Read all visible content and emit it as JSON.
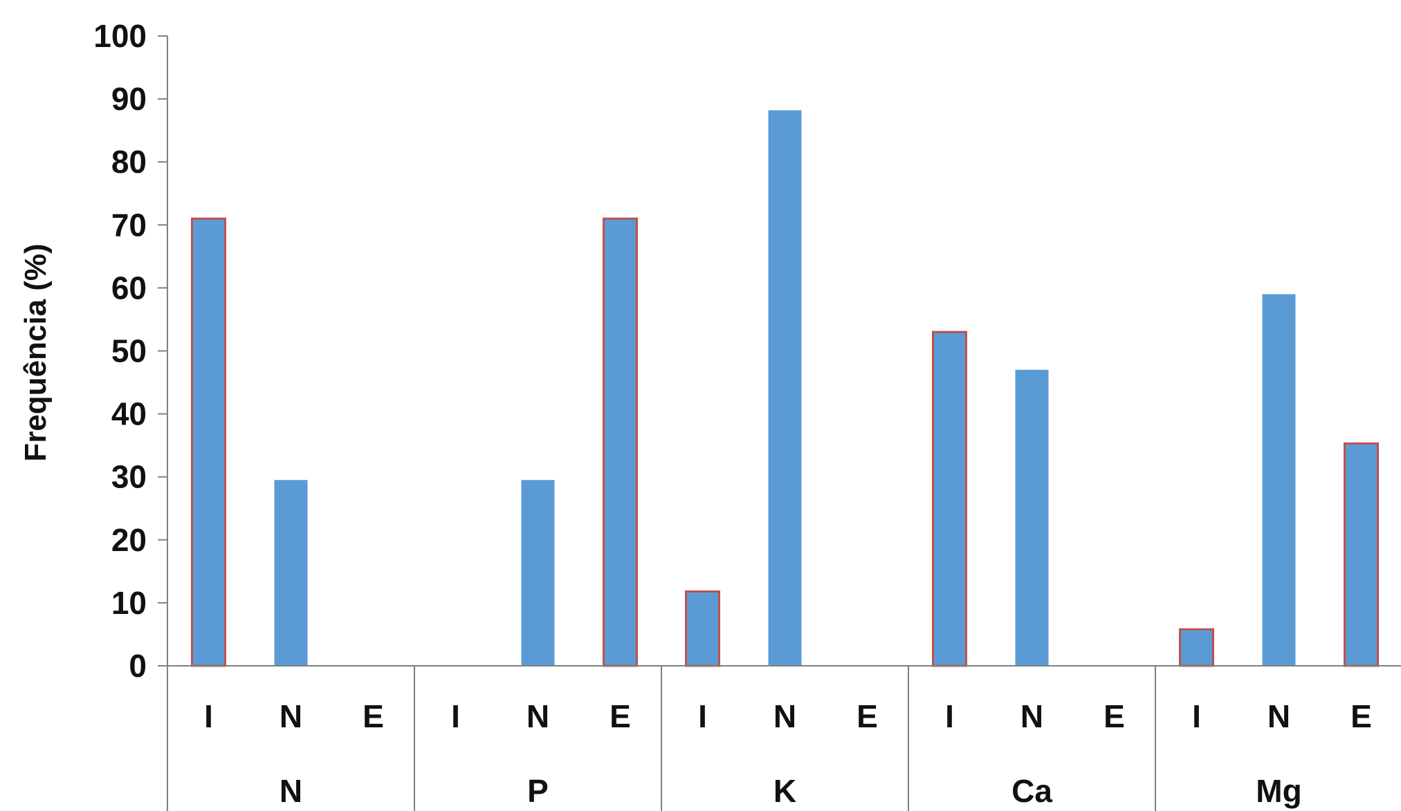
{
  "chart_data": {
    "type": "bar",
    "title": "",
    "xlabel": "",
    "ylabel": "Frequência (%)",
    "ylim": [
      0,
      100
    ],
    "yticks": [
      0,
      10,
      20,
      30,
      40,
      50,
      60,
      70,
      80,
      90,
      100
    ],
    "grid": false,
    "legend": "none",
    "groups": [
      {
        "label": "N",
        "subcategories": [
          "I",
          "N",
          "E"
        ],
        "values": [
          71,
          29.5,
          0
        ]
      },
      {
        "label": "P",
        "subcategories": [
          "I",
          "N",
          "E"
        ],
        "values": [
          0,
          29.5,
          71
        ]
      },
      {
        "label": "K",
        "subcategories": [
          "I",
          "N",
          "E"
        ],
        "values": [
          11.8,
          88.2,
          0
        ]
      },
      {
        "label": "Ca",
        "subcategories": [
          "I",
          "N",
          "E"
        ],
        "values": [
          53,
          47,
          0
        ]
      },
      {
        "label": "Mg",
        "subcategories": [
          "I",
          "N",
          "E"
        ],
        "values": [
          5.8,
          59,
          35.3
        ]
      }
    ],
    "colors": {
      "bar_fill": "#5B9BD5",
      "outline_highlight": "#C0504D",
      "axis": "#808080",
      "text": "#111111"
    }
  }
}
